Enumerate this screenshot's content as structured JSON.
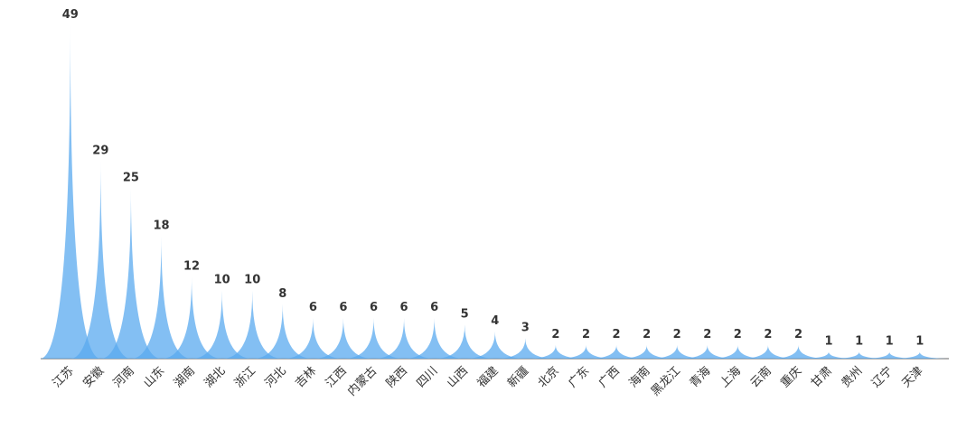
{
  "chart_data": {
    "type": "spike",
    "color": "#5aa9ef",
    "categories": [
      "江苏",
      "安徽",
      "河南",
      "山东",
      "湖南",
      "湖北",
      "浙江",
      "河北",
      "吉林",
      "江西",
      "内蒙古",
      "陕西",
      "四川",
      "山西",
      "福建",
      "新疆",
      "北京",
      "广东",
      "广西",
      "海南",
      "黑龙江",
      "青海",
      "上海",
      "云南",
      "重庆",
      "甘肃",
      "贵州",
      "辽宁",
      "天津"
    ],
    "values": [
      49,
      29,
      25,
      18,
      12,
      10,
      10,
      8,
      6,
      6,
      6,
      6,
      6,
      5,
      4,
      3,
      2,
      2,
      2,
      2,
      2,
      2,
      2,
      2,
      2,
      1,
      1,
      1,
      1
    ]
  }
}
